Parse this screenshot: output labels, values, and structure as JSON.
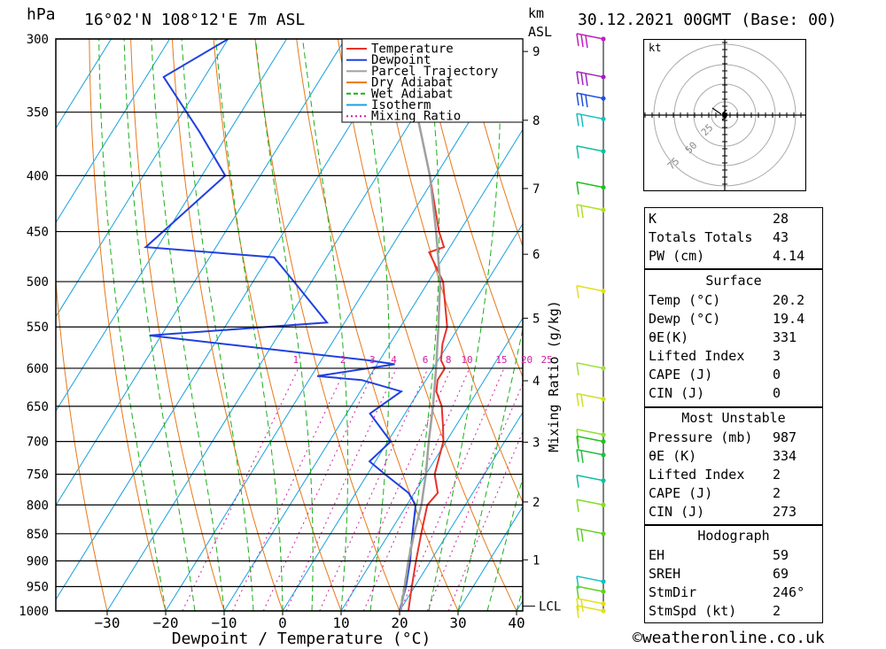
{
  "header": {
    "unit_left": "hPa",
    "location": "16°02'N  108°12'E  7m  ASL",
    "km": "km",
    "asl": "ASL",
    "datetime": "30.12.2021  00GMT  (Base: 00)"
  },
  "chart_data": {
    "type": "skew-t",
    "title": "16°02'N  108°12'E  7m  ASL",
    "xlabel": "Dewpoint / Temperature (°C)",
    "ylabel_left": "hPa",
    "ylabel_right": "Mixing Ratio (g/kg)",
    "xlim": [
      -40,
      40
    ],
    "ylim": [
      1000,
      300
    ],
    "x_ticks": [
      -30,
      -20,
      -10,
      0,
      10,
      20,
      30,
      40
    ],
    "pressure_levels": [
      300,
      350,
      400,
      450,
      500,
      550,
      600,
      650,
      700,
      750,
      800,
      850,
      900,
      950,
      1000
    ],
    "km_ticks": [
      1,
      2,
      3,
      4,
      5,
      6,
      7,
      8,
      9
    ],
    "mixing_ratio_labels": [
      1,
      2,
      3,
      4,
      6,
      8,
      10,
      15,
      20,
      25
    ],
    "lcl_label": "LCL",
    "legend": [
      {
        "name": "Temperature",
        "color": "#e8322a"
      },
      {
        "name": "Dewpoint",
        "color": "#2040e0"
      },
      {
        "name": "Parcel Trajectory",
        "color": "#a0a0a0"
      },
      {
        "name": "Dry Adiabat",
        "color": "#e87818"
      },
      {
        "name": "Wet Adiabat",
        "color": "#18b018"
      },
      {
        "name": "Isotherm",
        "color": "#18a0e0"
      },
      {
        "name": "Mixing Ratio",
        "color": "#d020a0"
      }
    ],
    "series": [
      {
        "name": "Temperature",
        "points": [
          [
            1000,
            21.5
          ],
          [
            950,
            19.5
          ],
          [
            900,
            17.5
          ],
          [
            850,
            15.5
          ],
          [
            800,
            13.5
          ],
          [
            780,
            14.0
          ],
          [
            750,
            11.5
          ],
          [
            700,
            9.5
          ],
          [
            680,
            8.0
          ],
          [
            650,
            5.5
          ],
          [
            630,
            3.0
          ],
          [
            615,
            2.0
          ],
          [
            600,
            2.0
          ],
          [
            590,
            0.5
          ],
          [
            570,
            -1.0
          ],
          [
            550,
            -2.0
          ],
          [
            500,
            -7.5
          ],
          [
            470,
            -13.0
          ],
          [
            465,
            -11.0
          ],
          [
            450,
            -13.5
          ],
          [
            400,
            -21.0
          ],
          [
            350,
            -30.0
          ],
          [
            300,
            -39.0
          ]
        ]
      },
      {
        "name": "Dewpoint",
        "points": [
          [
            1000,
            20.0
          ],
          [
            950,
            18.5
          ],
          [
            900,
            16.5
          ],
          [
            850,
            14.0
          ],
          [
            800,
            11.5
          ],
          [
            780,
            9.0
          ],
          [
            750,
            3.0
          ],
          [
            730,
            -1.0
          ],
          [
            700,
            0.5
          ],
          [
            660,
            -6.0
          ],
          [
            630,
            -3.0
          ],
          [
            615,
            -11.0
          ],
          [
            610,
            -19.0
          ],
          [
            595,
            -7.0
          ],
          [
            590,
            -12.0
          ],
          [
            560,
            -52.0
          ],
          [
            545,
            -23.0
          ],
          [
            500,
            -33.0
          ],
          [
            475,
            -39.0
          ],
          [
            465,
            -62.0
          ],
          [
            400,
            -56.0
          ],
          [
            365,
            -65.0
          ],
          [
            325,
            -77.0
          ],
          [
            300,
            -70.0
          ]
        ]
      },
      {
        "name": "Parcel Trajectory",
        "points": [
          [
            1000,
            20.2
          ],
          [
            950,
            18.3
          ],
          [
            900,
            16.2
          ],
          [
            850,
            14.3
          ],
          [
            800,
            12.5
          ],
          [
            780,
            11.5
          ],
          [
            750,
            10.0
          ],
          [
            700,
            7.0
          ],
          [
            650,
            4.0
          ],
          [
            600,
            0.5
          ],
          [
            550,
            -3.5
          ],
          [
            500,
            -8.0
          ],
          [
            450,
            -14.0
          ],
          [
            400,
            -21.0
          ],
          [
            350,
            -30.0
          ],
          [
            300,
            -42.0
          ]
        ]
      }
    ]
  },
  "hodograph": {
    "unit": "kt",
    "ring_labels": [
      "25",
      "50",
      "75"
    ]
  },
  "winds": [
    {
      "p": 300,
      "color": "#c020c0"
    },
    {
      "p": 325,
      "color": "#a020c0"
    },
    {
      "p": 340,
      "color": "#2050e0"
    },
    {
      "p": 355,
      "color": "#10c0c0"
    },
    {
      "p": 380,
      "color": "#10c0a0"
    },
    {
      "p": 410,
      "color": "#20c020"
    },
    {
      "p": 430,
      "color": "#b0e020"
    },
    {
      "p": 510,
      "color": "#e0e020"
    },
    {
      "p": 600,
      "color": "#a0e040"
    },
    {
      "p": 640,
      "color": "#d0e020"
    },
    {
      "p": 690,
      "color": "#90e030"
    },
    {
      "p": 700,
      "color": "#20c020"
    },
    {
      "p": 720,
      "color": "#20c040"
    },
    {
      "p": 760,
      "color": "#10c0a0"
    },
    {
      "p": 800,
      "color": "#80e020"
    },
    {
      "p": 850,
      "color": "#60d020"
    },
    {
      "p": 940,
      "color": "#10c0c0"
    },
    {
      "p": 960,
      "color": "#60d020"
    },
    {
      "p": 985,
      "color": "#e0e020"
    },
    {
      "p": 1000,
      "color": "#e0e020"
    }
  ],
  "indices": {
    "top": [
      {
        "label": "K",
        "value": "28"
      },
      {
        "label": "Totals Totals",
        "value": "43"
      },
      {
        "label": "PW (cm)",
        "value": "4.14"
      }
    ],
    "surface": {
      "title": "Surface",
      "rows": [
        {
          "label": "Temp (°C)",
          "value": "20.2"
        },
        {
          "label": "Dewp (°C)",
          "value": "19.4"
        },
        {
          "label": "θE(K)",
          "value": "331"
        },
        {
          "label": "Lifted Index",
          "value": "3"
        },
        {
          "label": "CAPE (J)",
          "value": "0"
        },
        {
          "label": "CIN (J)",
          "value": "0"
        }
      ]
    },
    "most_unstable": {
      "title": "Most Unstable",
      "rows": [
        {
          "label": "Pressure (mb)",
          "value": "987"
        },
        {
          "label": "θE (K)",
          "value": "334"
        },
        {
          "label": "Lifted Index",
          "value": "2"
        },
        {
          "label": "CAPE (J)",
          "value": "2"
        },
        {
          "label": "CIN (J)",
          "value": "273"
        }
      ]
    },
    "hodograph": {
      "title": "Hodograph",
      "rows": [
        {
          "label": "EH",
          "value": "59"
        },
        {
          "label": "SREH",
          "value": "69"
        },
        {
          "label": "StmDir",
          "value": "246°"
        },
        {
          "label": "StmSpd (kt)",
          "value": "2"
        }
      ]
    }
  },
  "footer": {
    "credit": "©weatheronline.co.uk"
  }
}
